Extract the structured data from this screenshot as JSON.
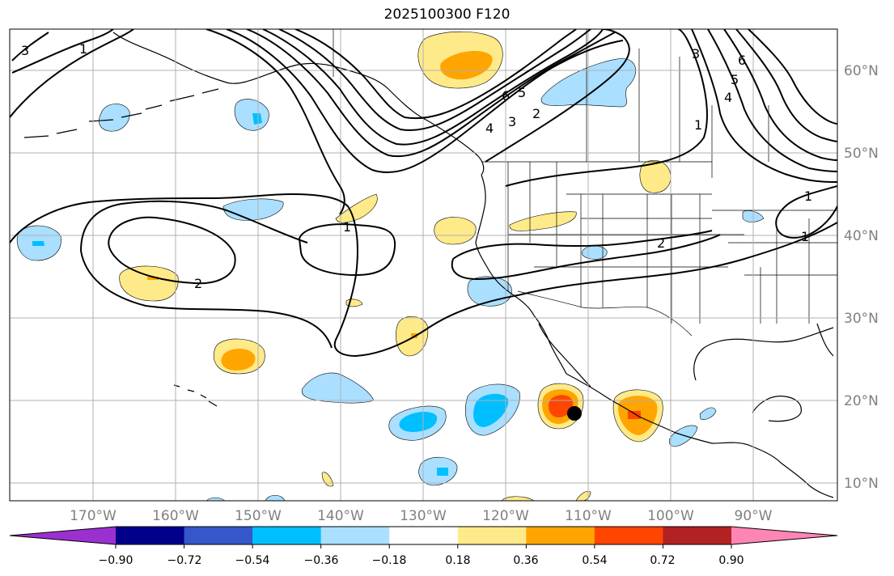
{
  "title": "2025100300 F120",
  "lon_labels": [
    "170°W",
    "160°W",
    "150°W",
    "140°W",
    "130°W",
    "120°W",
    "110°W",
    "100°W",
    "90°W"
  ],
  "lat_labels": [
    "60°N",
    "50°N",
    "40°N",
    "30°N",
    "20°N",
    "10°N"
  ],
  "colorbar": {
    "tick_labels": [
      "−0.90",
      "−0.72",
      "−0.54",
      "−0.36",
      "−0.18",
      "0.18",
      "0.36",
      "0.54",
      "0.72",
      "0.90"
    ],
    "colors": [
      "#9b30d0",
      "#00008b",
      "#3557c9",
      "#00bfff",
      "#aadfff",
      "#ffffff",
      "#ffea8a",
      "#ffa500",
      "#ff4500",
      "#b22222",
      "#ff85b4"
    ]
  },
  "contour_labels": [
    "3",
    "1",
    "6",
    "5",
    "4",
    "3",
    "2",
    "6",
    "5",
    "4",
    "3",
    "1",
    "1",
    "2",
    "1",
    "2",
    "1"
  ],
  "colors": {
    "neg_light": "#aadfff",
    "neg_mid": "#00bfff",
    "pos_light": "#ffea8a",
    "pos_mid": "#ffa500",
    "pos_strong": "#ff4500",
    "grid": "#b0b0b0",
    "axis_text": "#808080"
  }
}
